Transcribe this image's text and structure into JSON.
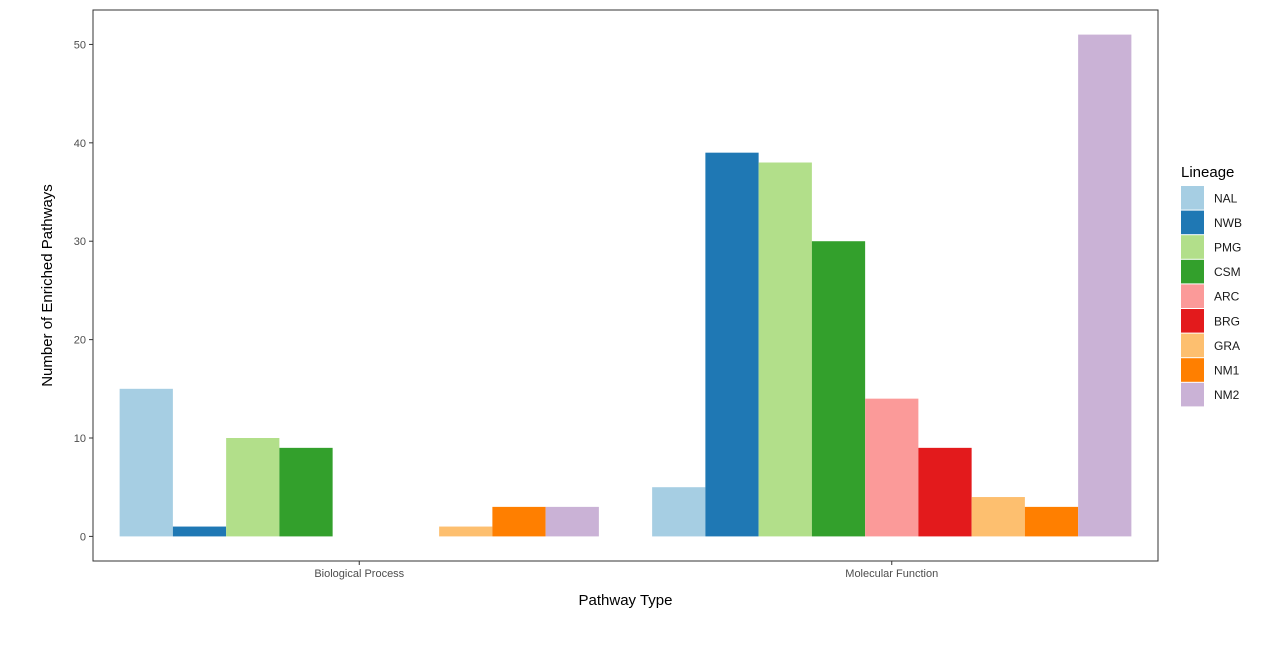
{
  "chart_data": {
    "type": "bar",
    "categories": [
      "Biological Process",
      "Molecular Function"
    ],
    "xlabel": "Pathway Type",
    "ylabel": "Number of Enriched Pathways",
    "ylim": [
      -2.5,
      53.5
    ],
    "yticks": [
      0,
      10,
      20,
      30,
      40,
      50
    ],
    "grid": false,
    "legend": {
      "title": "Lineage",
      "placement": "right"
    },
    "series": [
      {
        "name": "NAL",
        "color": "#A6CEE3",
        "values": [
          15,
          5
        ]
      },
      {
        "name": "NWB",
        "color": "#1F78B4",
        "values": [
          1,
          39
        ]
      },
      {
        "name": "PMG",
        "color": "#B2DF8A",
        "values": [
          10,
          38
        ]
      },
      {
        "name": "CSM",
        "color": "#33A02C",
        "values": [
          9,
          30
        ]
      },
      {
        "name": "ARC",
        "color": "#FB9A99",
        "values": [
          0,
          14
        ]
      },
      {
        "name": "BRG",
        "color": "#E31A1C",
        "values": [
          0,
          9
        ]
      },
      {
        "name": "GRA",
        "color": "#FDBF6F",
        "values": [
          1,
          4
        ]
      },
      {
        "name": "NM1",
        "color": "#FF7F00",
        "values": [
          3,
          3
        ]
      },
      {
        "name": "NM2",
        "color": "#CAB2D6",
        "values": [
          3,
          51
        ]
      }
    ]
  }
}
